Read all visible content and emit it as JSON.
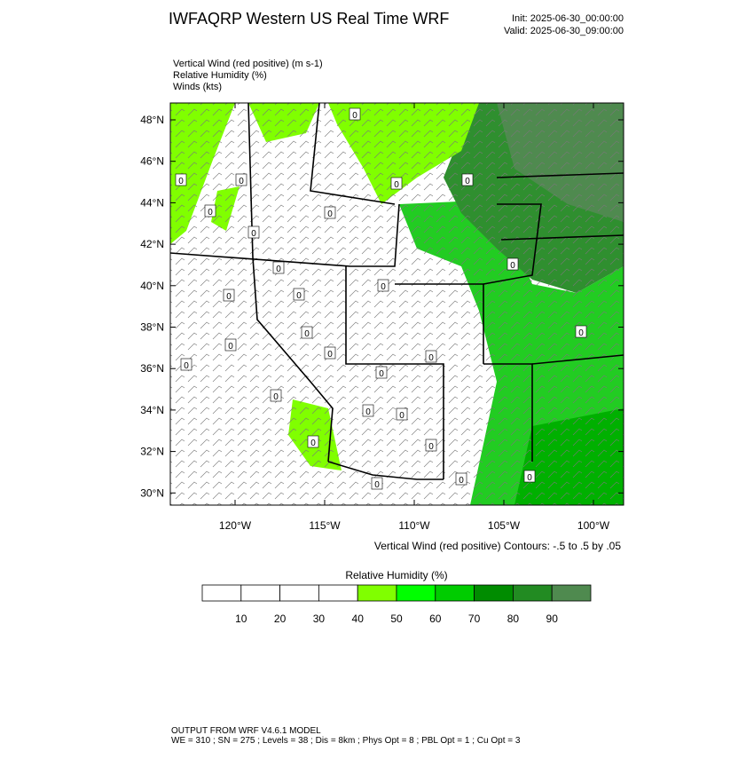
{
  "header": {
    "title": "IWFAQRP Western US Real Time WRF",
    "init": "Init: 2025-06-30_00:00:00",
    "valid": "Valid: 2025-06-30_09:00:00"
  },
  "fields": [
    "Vertical Wind (red positive)   (m s-1)",
    "Relative Humidity   (%)",
    "Winds   (kts)"
  ],
  "map": {
    "lat_labels": [
      "48°N",
      "46°N",
      "44°N",
      "42°N",
      "40°N",
      "38°N",
      "36°N",
      "34°N",
      "32°N",
      "30°N"
    ],
    "lon_labels": [
      "120°W",
      "115°W",
      "110°W",
      "105°W",
      "100°W"
    ],
    "contour_label": "0",
    "contour_note": "Vertical Wind (red positive) Contours: -.5 to .5 by .05"
  },
  "colorbar": {
    "title": "Relative Humidity   (%)",
    "labels": [
      "10",
      "20",
      "30",
      "40",
      "50",
      "60",
      "70",
      "80",
      "90"
    ],
    "colors": [
      "#ffffff",
      "#ffffff",
      "#ffffff",
      "#ffffff",
      "#80ff00",
      "#00ff00",
      "#00cc00",
      "#008c00",
      "#228b22",
      "#4f8a4f"
    ]
  },
  "footer": [
    "OUTPUT FROM WRF V4.6.1 MODEL",
    "WE = 310 ; SN = 275 ; Levels = 38 ; Dis = 8km ; Phys Opt = 8 ; PBL Opt = 1 ; Cu Opt = 3"
  ]
}
